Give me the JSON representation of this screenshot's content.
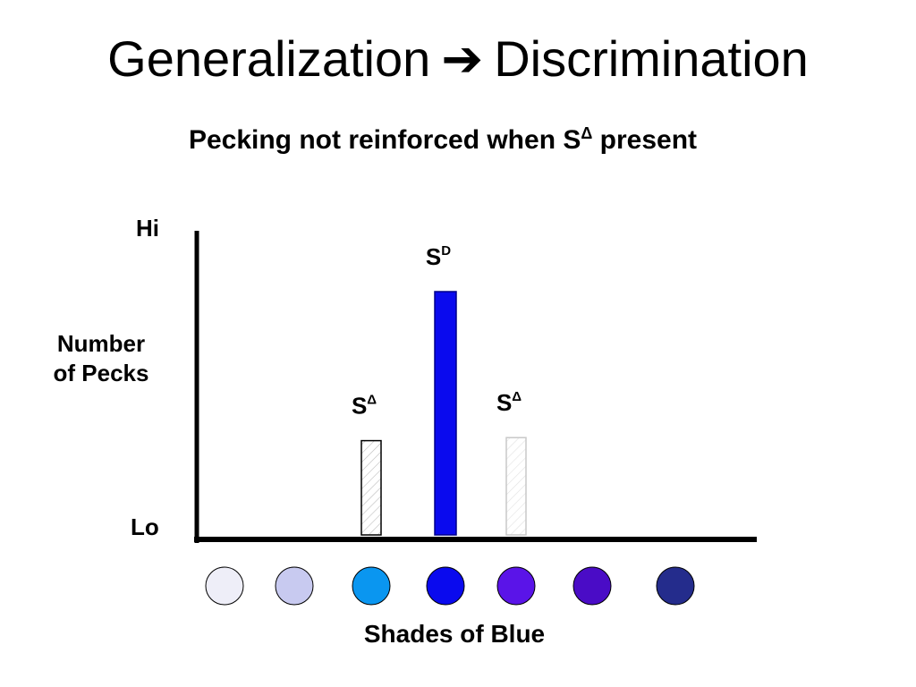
{
  "slide": {
    "title_left": "Generalization",
    "title_arrow": "➔",
    "title_right": "Discrimination",
    "subtitle_main": "Pecking not reinforced when S",
    "subtitle_sup": "Δ",
    "subtitle_end": " present"
  },
  "chart_data": {
    "type": "bar",
    "ylabel": "Number of Pecks",
    "ylabel_lines": [
      "Number",
      "of Pecks"
    ],
    "y_tick_labels": {
      "top": "Hi",
      "bottom": "Lo"
    },
    "xlabel": "Shades of Blue",
    "ylim": [
      0,
      1
    ],
    "grid": false,
    "categories": [
      "shade-1",
      "shade-2",
      "shade-3",
      "shade-4",
      "shade-5",
      "shade-6",
      "shade-7"
    ],
    "category_colors": [
      "#EEEEF8",
      "#C8CAF0",
      "#0A96F0",
      "#0A0AEE",
      "#5A14E8",
      "#4A0CC6",
      "#242C8C"
    ],
    "values": [
      0,
      0,
      0.31,
      0.8,
      0.32,
      0,
      0
    ],
    "bar_styles": [
      "none",
      "none",
      "hatched-outline",
      "solid",
      "hatched-light",
      "none",
      "none"
    ],
    "bar_fill_colors": {
      "solid": "#0A0AEE",
      "hatched-outline": "#FFFFFF",
      "hatched-light": "#FFFFFF"
    },
    "annotations": [
      {
        "category_index": 2,
        "text": "S",
        "sup": "Δ"
      },
      {
        "category_index": 3,
        "text": "S",
        "sup": "D"
      },
      {
        "category_index": 4,
        "text": "S",
        "sup": "Δ"
      }
    ]
  }
}
